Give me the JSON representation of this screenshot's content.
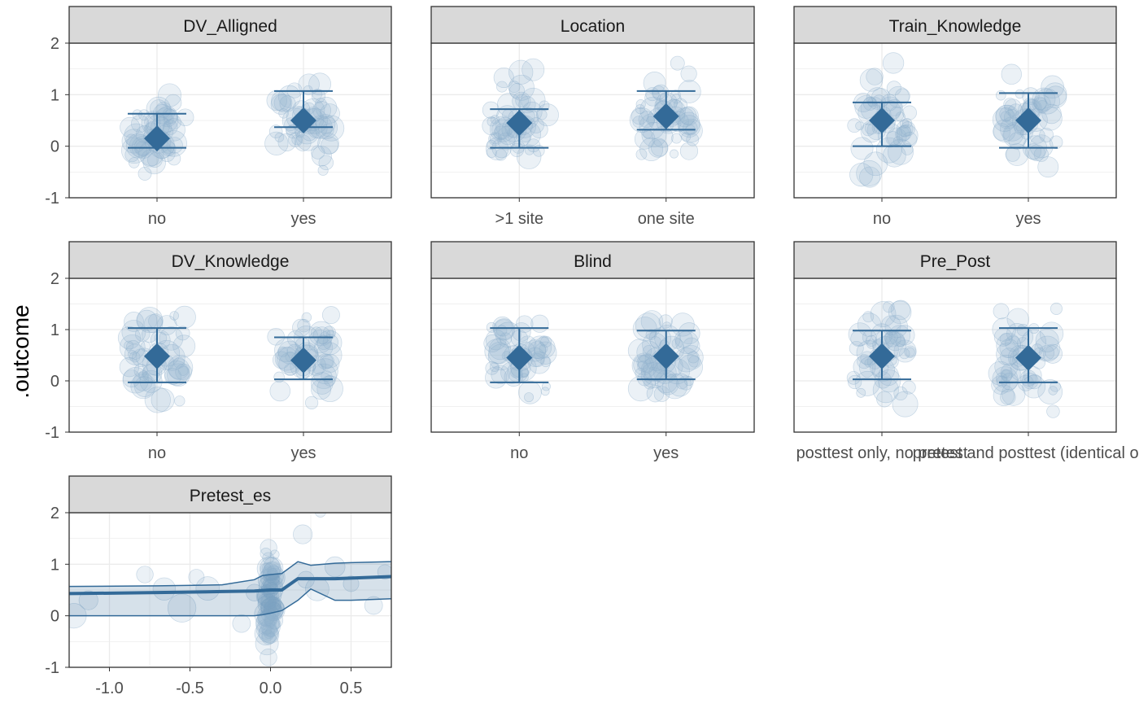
{
  "chart_data": {
    "type": "scatter",
    "ylabel": ".outcome",
    "xlabel": "",
    "ylim": [
      -1,
      2
    ],
    "y_ticks": [
      "-1",
      "0",
      "1",
      "2"
    ],
    "colors": {
      "accent": "#336a98",
      "strip_bg": "#d9d9d9",
      "points": "#8fb0cc"
    },
    "panels": [
      {
        "name": "DV_Alligned",
        "kind": "categorical",
        "categories": [
          "no",
          "yes"
        ],
        "estimates": [
          {
            "category": "no",
            "y": 0.15,
            "lower": -0.03,
            "upper": 0.63
          },
          {
            "category": "yes",
            "y": 0.5,
            "lower": 0.37,
            "upper": 1.07
          }
        ]
      },
      {
        "name": "Location",
        "kind": "categorical",
        "categories": [
          ">1 site",
          "one site"
        ],
        "estimates": [
          {
            "category": ">1 site",
            "y": 0.45,
            "lower": -0.03,
            "upper": 0.72
          },
          {
            "category": "one site",
            "y": 0.58,
            "lower": 0.32,
            "upper": 1.07
          }
        ]
      },
      {
        "name": "Train_Knowledge",
        "kind": "categorical",
        "categories": [
          "no",
          "yes"
        ],
        "estimates": [
          {
            "category": "no",
            "y": 0.5,
            "lower": 0.0,
            "upper": 0.85
          },
          {
            "category": "yes",
            "y": 0.5,
            "lower": -0.03,
            "upper": 1.03
          }
        ]
      },
      {
        "name": "DV_Knowledge",
        "kind": "categorical",
        "categories": [
          "no",
          "yes"
        ],
        "estimates": [
          {
            "category": "no",
            "y": 0.48,
            "lower": -0.03,
            "upper": 1.03
          },
          {
            "category": "yes",
            "y": 0.4,
            "lower": 0.03,
            "upper": 0.85
          }
        ]
      },
      {
        "name": "Blind",
        "kind": "categorical",
        "categories": [
          "no",
          "yes"
        ],
        "estimates": [
          {
            "category": "no",
            "y": 0.45,
            "lower": -0.03,
            "upper": 1.03
          },
          {
            "category": "yes",
            "y": 0.48,
            "lower": 0.03,
            "upper": 0.98
          }
        ]
      },
      {
        "name": "Pre_Post",
        "kind": "categorical",
        "categories": [
          "posttest only, no pretest",
          "pretest and posttest (identical or equivalent)"
        ],
        "tick_labels": [
          "posttest only, no pretest",
          "pretest and posttest (identical or"
        ],
        "estimates": [
          {
            "category": "posttest only, no pretest",
            "y": 0.48,
            "lower": 0.03,
            "upper": 0.98
          },
          {
            "category": "pretest and posttest (identical or equivalent)",
            "y": 0.45,
            "lower": -0.03,
            "upper": 1.03
          }
        ]
      },
      {
        "name": "Pretest_es",
        "kind": "continuous",
        "xlim": [
          -1.25,
          0.75
        ],
        "x_ticks": [
          -1.0,
          -0.5,
          0.0,
          0.5
        ],
        "x_tick_labels": [
          "-1.0",
          "-0.5",
          "0.0",
          "0.5"
        ],
        "line": [
          {
            "x": -1.25,
            "y": 0.43,
            "lower": 0.0,
            "upper": 0.57
          },
          {
            "x": -0.7,
            "y": 0.45,
            "lower": 0.0,
            "upper": 0.58
          },
          {
            "x": -0.3,
            "y": 0.47,
            "lower": 0.0,
            "upper": 0.6
          },
          {
            "x": -0.1,
            "y": 0.48,
            "lower": 0.0,
            "upper": 0.7
          },
          {
            "x": -0.05,
            "y": 0.49,
            "lower": 0.02,
            "upper": 0.78
          },
          {
            "x": 0.0,
            "y": 0.5,
            "lower": 0.05,
            "upper": 0.8
          },
          {
            "x": 0.07,
            "y": 0.5,
            "lower": 0.1,
            "upper": 0.82
          },
          {
            "x": 0.17,
            "y": 0.72,
            "lower": 0.3,
            "upper": 1.05
          },
          {
            "x": 0.25,
            "y": 0.72,
            "lower": 0.52,
            "upper": 0.98
          },
          {
            "x": 0.4,
            "y": 0.72,
            "lower": 0.3,
            "upper": 1.02
          },
          {
            "x": 0.5,
            "y": 0.73,
            "lower": 0.3,
            "upper": 1.03
          },
          {
            "x": 0.75,
            "y": 0.76,
            "lower": 0.33,
            "upper": 1.05
          }
        ],
        "points": [
          {
            "x": -1.22,
            "y": 0.0,
            "s": 1.6
          },
          {
            "x": -1.13,
            "y": 0.3,
            "s": 1.1
          },
          {
            "x": -0.78,
            "y": 0.8,
            "s": 0.9
          },
          {
            "x": -0.66,
            "y": 0.52,
            "s": 1.4
          },
          {
            "x": -0.55,
            "y": 0.15,
            "s": 1.9
          },
          {
            "x": -0.46,
            "y": 0.75,
            "s": 0.8
          },
          {
            "x": -0.39,
            "y": 0.53,
            "s": 1.5
          },
          {
            "x": -0.18,
            "y": -0.15,
            "s": 1.0
          },
          {
            "x": -0.1,
            "y": 0.45,
            "s": 0.9
          },
          {
            "x": 0.2,
            "y": 1.58,
            "s": 1.1
          },
          {
            "x": 0.22,
            "y": 0.7,
            "s": 0.9
          },
          {
            "x": 0.29,
            "y": 0.52,
            "s": 1.5
          },
          {
            "x": 0.31,
            "y": 2.02,
            "s": 0.4
          },
          {
            "x": 0.4,
            "y": 0.95,
            "s": 1.2
          },
          {
            "x": 0.5,
            "y": 0.62,
            "s": 0.8
          },
          {
            "x": 0.64,
            "y": 0.2,
            "s": 1.0
          },
          {
            "x": 0.71,
            "y": 0.85,
            "s": 0.7
          }
        ]
      }
    ]
  }
}
